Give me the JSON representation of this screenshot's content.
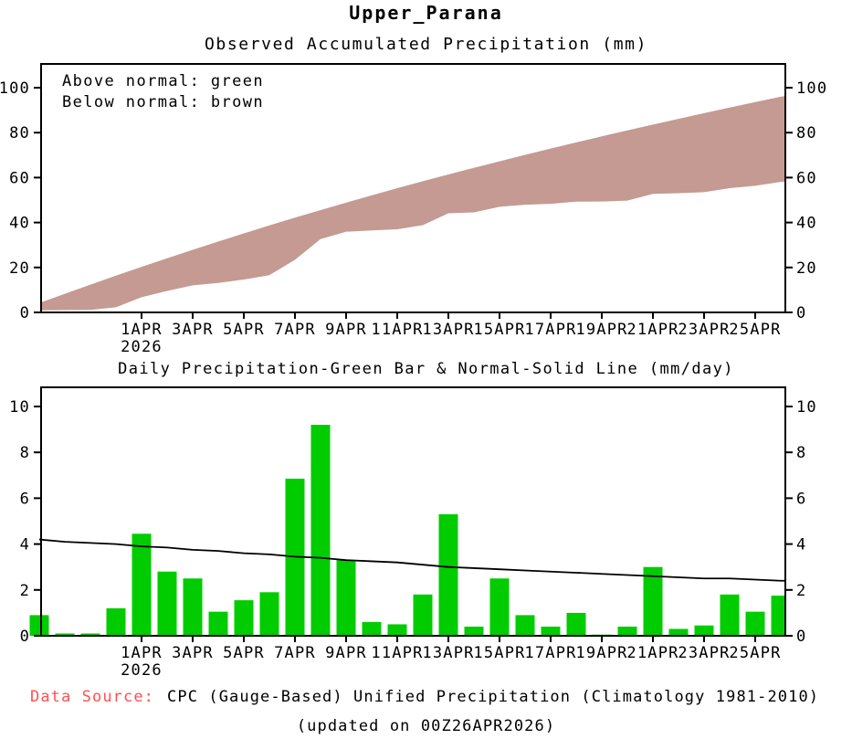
{
  "header": {
    "title": "Upper_Parana"
  },
  "colors": {
    "above_normal_green": "#00cc00",
    "below_normal_brown": "#c49a92",
    "axis_black": "#000000",
    "data_source_red": "#ff5050",
    "background": "#ffffff"
  },
  "footer": {
    "label": "Data Source:",
    "text": "CPC (Gauge-Based) Unified Precipitation (Climatology 1981-2010)",
    "updated": "(updated on 00Z26APR2026)"
  },
  "chart_data": [
    {
      "type": "area",
      "title": "Observed Accumulated Precipitation (mm)",
      "annotations": [
        "Above normal: green",
        "Below normal: brown"
      ],
      "x_dates": [
        "28MAR",
        "29MAR",
        "30MAR",
        "31MAR",
        "1APR",
        "2APR",
        "3APR",
        "4APR",
        "5APR",
        "6APR",
        "7APR",
        "8APR",
        "9APR",
        "10APR",
        "11APR",
        "12APR",
        "13APR",
        "14APR",
        "15APR",
        "16APR",
        "17APR",
        "18APR",
        "19APR",
        "20APR",
        "21APR",
        "22APR",
        "23APR",
        "24APR",
        "25APR",
        "26APR"
      ],
      "series": [
        {
          "name": "Normal accumulated (upper bound of band)",
          "values": [
            4.2,
            8.3,
            12.35,
            16.35,
            20.25,
            24.1,
            27.85,
            31.55,
            35.15,
            38.7,
            42.15,
            45.55,
            48.85,
            52.1,
            55.3,
            58.4,
            61.4,
            64.35,
            67.25,
            70.1,
            72.9,
            75.65,
            78.35,
            81.0,
            83.6,
            86.15,
            88.65,
            91.15,
            93.6,
            96.0
          ]
        },
        {
          "name": "Observed accumulated (lower bound of band)",
          "values": [
            0.9,
            1.0,
            1.1,
            2.3,
            6.75,
            9.55,
            12.05,
            13.1,
            14.65,
            16.55,
            23.4,
            32.6,
            35.9,
            36.5,
            37.0,
            38.8,
            44.1,
            44.5,
            47.0,
            47.9,
            48.3,
            49.3,
            49.35,
            49.75,
            52.75,
            53.05,
            53.5,
            55.3,
            56.35,
            58.1
          ]
        }
      ],
      "band_status": "below normal (brown fill between observed and normal)",
      "ylim": [
        0,
        110
      ],
      "yticks": [
        0,
        20,
        40,
        60,
        80,
        100
      ],
      "yticks_right": [
        0,
        20,
        40,
        60,
        80,
        100
      ],
      "xtick_labels": [
        "1APR",
        "3APR",
        "5APR",
        "7APR",
        "9APR",
        "11APR",
        "13APR",
        "15APR",
        "17APR",
        "19APR",
        "21APR",
        "23APR",
        "25APR"
      ],
      "xtick_year": "2026",
      "grid": false,
      "legend_position": "top-left-inside"
    },
    {
      "type": "bar+line",
      "title": "Daily Precipitation-Green Bar & Normal-Solid Line (mm/day)",
      "x_dates": [
        "28MAR",
        "29MAR",
        "30MAR",
        "31MAR",
        "1APR",
        "2APR",
        "3APR",
        "4APR",
        "5APR",
        "6APR",
        "7APR",
        "8APR",
        "9APR",
        "10APR",
        "11APR",
        "12APR",
        "13APR",
        "14APR",
        "15APR",
        "16APR",
        "17APR",
        "18APR",
        "19APR",
        "20APR",
        "21APR",
        "22APR",
        "23APR",
        "24APR",
        "25APR",
        "26APR"
      ],
      "series": [
        {
          "name": "Daily precipitation (green bars)",
          "values": [
            0.9,
            0.1,
            0.1,
            1.2,
            4.45,
            2.8,
            2.5,
            1.05,
            1.55,
            1.9,
            6.85,
            9.2,
            3.3,
            0.6,
            0.5,
            1.8,
            5.3,
            0.4,
            2.5,
            0.9,
            0.4,
            1.0,
            0.05,
            0.4,
            3.0,
            0.3,
            0.45,
            1.8,
            1.05,
            1.75
          ]
        },
        {
          "name": "Normal (solid line)",
          "values": [
            4.2,
            4.1,
            4.05,
            4.0,
            3.9,
            3.85,
            3.75,
            3.7,
            3.6,
            3.55,
            3.45,
            3.4,
            3.3,
            3.25,
            3.2,
            3.1,
            3.0,
            2.95,
            2.9,
            2.85,
            2.8,
            2.75,
            2.7,
            2.65,
            2.6,
            2.55,
            2.5,
            2.5,
            2.45,
            2.4
          ]
        }
      ],
      "ylim": [
        0,
        10.8
      ],
      "yticks": [
        0,
        2,
        4,
        6,
        8,
        10
      ],
      "yticks_right": [
        0,
        2,
        4,
        6,
        8,
        10
      ],
      "xtick_labels": [
        "1APR",
        "3APR",
        "5APR",
        "7APR",
        "9APR",
        "11APR",
        "13APR",
        "15APR",
        "17APR",
        "19APR",
        "21APR",
        "23APR",
        "25APR"
      ],
      "xtick_year": "2026",
      "grid": false
    }
  ]
}
